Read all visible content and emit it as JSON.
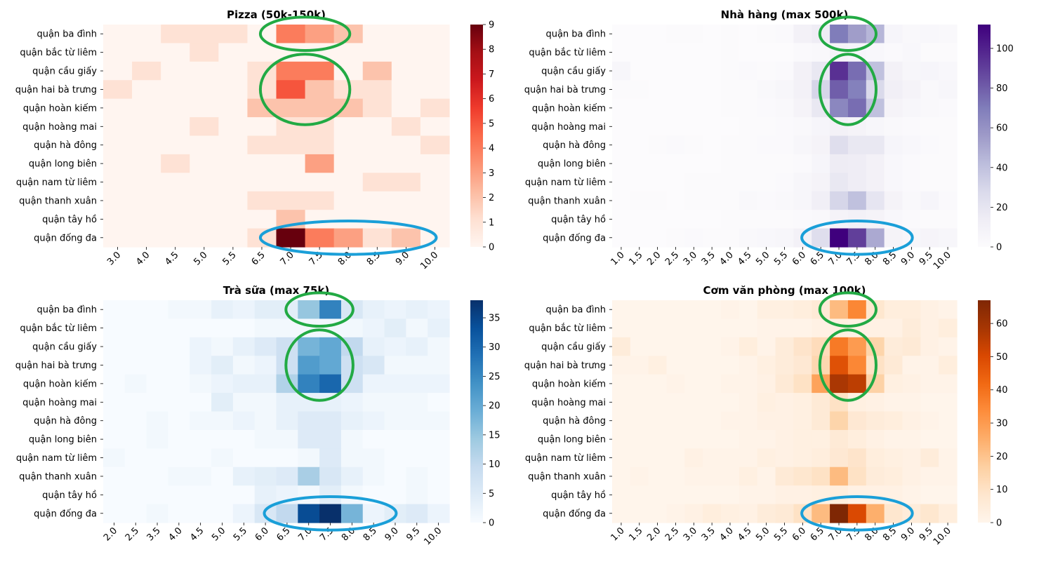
{
  "figure": {
    "panels": [
      {
        "key": "pizza",
        "title": "Pizza (50k-150k)"
      },
      {
        "key": "restaurant",
        "title": "Nhà hàng (max 500k)"
      },
      {
        "key": "milktea",
        "title": "Trà sữa (max 75k)"
      },
      {
        "key": "office_rice",
        "title": "Cơm văn phòng (max 100k)"
      }
    ]
  },
  "chart_data": [
    {
      "type": "heatmap",
      "title": "Pizza (50k-150k)",
      "colormap": "Reds",
      "colorbar": {
        "min": 0,
        "max": 9,
        "ticks": [
          0,
          1,
          2,
          3,
          4,
          5,
          6,
          7,
          8,
          9
        ]
      },
      "x": [
        "3.0",
        "4.0",
        "4.5",
        "5.0",
        "5.5",
        "6.5",
        "7.0",
        "7.5",
        "8.0",
        "8.5",
        "9.0",
        "10.0"
      ],
      "y": [
        "quận ba đình",
        "quận bắc từ liêm",
        "quận cầu giấy",
        "quận hai bà trưng",
        "quận hoàn kiếm",
        "quận hoàng mai",
        "quận hà đông",
        "quận long biên",
        "quận nam từ liêm",
        "quận thanh xuân",
        "quận tây hồ",
        "quận đống đa"
      ],
      "z": [
        [
          0,
          0,
          1,
          1,
          1,
          0,
          4,
          3,
          2,
          0,
          0,
          0
        ],
        [
          0,
          0,
          0,
          1,
          0,
          0,
          0,
          0,
          0,
          0,
          0,
          0
        ],
        [
          0,
          1,
          0,
          0,
          0,
          1,
          4,
          4,
          0,
          2,
          0,
          0
        ],
        [
          1,
          0,
          0,
          0,
          0,
          1,
          5,
          2,
          1,
          1,
          0,
          0
        ],
        [
          0,
          0,
          0,
          0,
          0,
          2,
          2,
          2,
          2,
          1,
          0,
          1
        ],
        [
          0,
          0,
          0,
          1,
          0,
          0,
          1,
          1,
          0,
          0,
          1,
          0
        ],
        [
          0,
          0,
          0,
          0,
          0,
          1,
          1,
          1,
          0,
          0,
          0,
          1
        ],
        [
          0,
          0,
          1,
          0,
          0,
          0,
          0,
          3,
          0,
          0,
          0,
          0
        ],
        [
          0,
          0,
          0,
          0,
          0,
          0,
          0,
          0,
          0,
          1,
          1,
          0
        ],
        [
          0,
          0,
          0,
          0,
          0,
          1,
          1,
          1,
          0,
          0,
          0,
          0
        ],
        [
          0,
          0,
          0,
          0,
          0,
          0,
          2,
          0,
          0,
          0,
          0,
          0
        ],
        [
          0,
          0,
          0,
          0,
          0,
          1,
          9,
          4,
          3,
          1,
          2,
          0
        ]
      ],
      "annotations": [
        {
          "shape": "ellipse",
          "color": "#22aa44",
          "around": {
            "rows": [
              0,
              0
            ],
            "cols": [
              6,
              7
            ]
          }
        },
        {
          "shape": "ellipse",
          "color": "#22aa44",
          "around": {
            "rows": [
              2,
              4
            ],
            "cols": [
              6,
              7
            ]
          }
        },
        {
          "shape": "ellipse",
          "color": "#1a9fd8",
          "around": {
            "rows": [
              11,
              11
            ],
            "cols": [
              6,
              10
            ]
          }
        }
      ]
    },
    {
      "type": "heatmap",
      "title": "Nhà hàng (max 500k)",
      "colormap": "Purples",
      "colorbar": {
        "min": 0,
        "max": 112,
        "ticks": [
          0,
          20,
          40,
          60,
          80,
          100
        ]
      },
      "x": [
        "1.0",
        "1.5",
        "2.0",
        "2.5",
        "3.0",
        "3.5",
        "4.0",
        "4.5",
        "5.0",
        "5.5",
        "6.0",
        "6.5",
        "7.0",
        "7.5",
        "8.0",
        "8.5",
        "9.0",
        "9.5",
        "10.0"
      ],
      "y": [
        "quận ba đình",
        "quận bắc từ liêm",
        "quận cầu giấy",
        "quận hai bà trưng",
        "quận hoàn kiếm",
        "quận hoàng mai",
        "quận hà đông",
        "quận long biên",
        "quận nam từ liêm",
        "quận thanh xuân",
        "quận tây hồ",
        "quận đống đa"
      ],
      "z": [
        [
          0,
          0,
          0,
          1,
          1,
          0,
          1,
          0,
          1,
          2,
          10,
          14,
          70,
          55,
          45,
          6,
          3,
          4,
          3
        ],
        [
          0,
          0,
          0,
          0,
          0,
          0,
          1,
          0,
          0,
          0,
          2,
          3,
          8,
          6,
          4,
          2,
          4,
          1,
          1
        ],
        [
          5,
          0,
          0,
          0,
          0,
          0,
          1,
          2,
          1,
          2,
          10,
          18,
          95,
          75,
          40,
          10,
          5,
          6,
          4
        ],
        [
          1,
          1,
          0,
          0,
          0,
          0,
          1,
          1,
          3,
          5,
          10,
          30,
          80,
          68,
          28,
          12,
          8,
          3,
          5
        ],
        [
          0,
          0,
          0,
          0,
          0,
          0,
          1,
          1,
          2,
          3,
          8,
          18,
          65,
          75,
          40,
          8,
          5,
          3,
          2
        ],
        [
          0,
          0,
          0,
          0,
          0,
          0,
          0,
          1,
          1,
          2,
          3,
          6,
          10,
          8,
          5,
          3,
          2,
          1,
          1
        ],
        [
          0,
          0,
          1,
          2,
          1,
          0,
          1,
          1,
          2,
          2,
          5,
          8,
          25,
          18,
          18,
          6,
          4,
          2,
          1
        ],
        [
          0,
          0,
          0,
          0,
          0,
          0,
          1,
          1,
          1,
          1,
          2,
          6,
          15,
          14,
          10,
          4,
          2,
          1,
          1
        ],
        [
          0,
          0,
          0,
          0,
          1,
          1,
          1,
          1,
          1,
          2,
          5,
          8,
          18,
          14,
          10,
          4,
          2,
          1,
          1
        ],
        [
          0,
          1,
          1,
          0,
          1,
          1,
          1,
          3,
          2,
          3,
          5,
          12,
          30,
          40,
          20,
          8,
          3,
          6,
          2
        ],
        [
          0,
          0,
          0,
          0,
          0,
          0,
          1,
          1,
          1,
          1,
          2,
          3,
          8,
          10,
          8,
          4,
          2,
          1,
          1
        ],
        [
          0,
          0,
          0,
          1,
          2,
          1,
          1,
          3,
          4,
          5,
          10,
          25,
          112,
          90,
          50,
          8,
          5,
          7,
          5
        ]
      ],
      "annotations": [
        {
          "shape": "ellipse",
          "color": "#22aa44",
          "around": {
            "rows": [
              0,
              0
            ],
            "cols": [
              12,
              13
            ]
          }
        },
        {
          "shape": "ellipse",
          "color": "#22aa44",
          "around": {
            "rows": [
              2,
              4
            ],
            "cols": [
              12,
              13
            ]
          }
        },
        {
          "shape": "ellipse",
          "color": "#1a9fd8",
          "around": {
            "rows": [
              11,
              11
            ],
            "cols": [
              11,
              15
            ]
          }
        }
      ]
    },
    {
      "type": "heatmap",
      "title": "Trà sữa (max 75k)",
      "colormap": "Blues",
      "colorbar": {
        "min": 0,
        "max": 38,
        "ticks": [
          0,
          5,
          10,
          15,
          20,
          25,
          30,
          35
        ]
      },
      "x": [
        "2.0",
        "2.5",
        "3.5",
        "4.0",
        "4.5",
        "5.0",
        "5.5",
        "6.0",
        "6.5",
        "7.0",
        "7.5",
        "8.0",
        "8.5",
        "9.0",
        "9.5",
        "10.0"
      ],
      "y": [
        "quận ba đình",
        "quận bắc từ liêm",
        "quận cầu giấy",
        "quận hai bà trưng",
        "quận hoàn kiếm",
        "quận hoàng mai",
        "quận hà đông",
        "quận long biên",
        "quận nam từ liêm",
        "quận thanh xuân",
        "quận tây hồ",
        "quận đống đa"
      ],
      "z": [
        [
          0,
          0,
          0,
          1,
          1,
          3,
          2,
          4,
          4,
          15,
          26,
          6,
          3,
          2,
          3,
          2
        ],
        [
          0,
          0,
          0,
          0,
          0,
          0,
          0,
          1,
          1,
          1,
          1,
          1,
          2,
          4,
          1,
          3
        ],
        [
          0,
          0,
          0,
          0,
          2,
          1,
          3,
          5,
          8,
          18,
          20,
          10,
          3,
          2,
          3,
          1
        ],
        [
          0,
          0,
          0,
          0,
          2,
          4,
          1,
          2,
          8,
          22,
          20,
          8,
          6,
          1,
          1,
          1
        ],
        [
          0,
          1,
          0,
          0,
          1,
          2,
          3,
          3,
          12,
          26,
          30,
          8,
          2,
          2,
          2,
          2
        ],
        [
          0,
          0,
          0,
          0,
          0,
          4,
          1,
          1,
          3,
          3,
          3,
          2,
          1,
          1,
          1,
          0
        ],
        [
          0,
          0,
          1,
          0,
          1,
          1,
          2,
          1,
          3,
          5,
          5,
          3,
          2,
          1,
          1,
          1
        ],
        [
          0,
          0,
          1,
          0,
          0,
          0,
          0,
          1,
          1,
          5,
          5,
          1,
          0,
          0,
          0,
          0
        ],
        [
          1,
          0,
          0,
          0,
          0,
          1,
          0,
          0,
          0,
          1,
          5,
          1,
          1,
          0,
          0,
          0
        ],
        [
          0,
          0,
          0,
          1,
          1,
          0,
          3,
          4,
          5,
          13,
          6,
          3,
          1,
          0,
          1,
          0
        ],
        [
          0,
          0,
          0,
          0,
          0,
          0,
          0,
          3,
          2,
          1,
          4,
          1,
          0,
          0,
          1,
          0
        ],
        [
          0,
          0,
          1,
          0,
          0,
          0,
          2,
          6,
          10,
          34,
          38,
          18,
          2,
          4,
          5,
          2
        ]
      ],
      "annotations": [
        {
          "shape": "ellipse",
          "color": "#22aa44",
          "around": {
            "rows": [
              0,
              0
            ],
            "cols": [
              9,
              10
            ]
          }
        },
        {
          "shape": "ellipse",
          "color": "#22aa44",
          "around": {
            "rows": [
              2,
              4
            ],
            "cols": [
              9,
              10
            ]
          }
        },
        {
          "shape": "ellipse",
          "color": "#1a9fd8",
          "around": {
            "rows": [
              11,
              11
            ],
            "cols": [
              8,
              12
            ]
          }
        }
      ]
    },
    {
      "type": "heatmap",
      "title": "Cơm văn phòng (max 100k)",
      "colormap": "Oranges",
      "colorbar": {
        "min": 0,
        "max": 67,
        "ticks": [
          0,
          10,
          20,
          30,
          40,
          50,
          60
        ]
      },
      "x": [
        "1.0",
        "1.5",
        "2.0",
        "2.5",
        "3.0",
        "3.5",
        "4.0",
        "4.5",
        "5.0",
        "5.5",
        "6.0",
        "6.5",
        "7.0",
        "7.5",
        "8.0",
        "8.5",
        "9.0",
        "9.5",
        "10.0"
      ],
      "y": [
        "quận ba đình",
        "quận bắc từ liêm",
        "quận cầu giấy",
        "quận hai bà trưng",
        "quận hoàn kiếm",
        "quận hoàng mai",
        "quận hà đông",
        "quận long biên",
        "quận nam từ liêm",
        "quận thanh xuân",
        "quận tây hồ",
        "quận đống đa"
      ],
      "z": [
        [
          0,
          0,
          0,
          0,
          0,
          0,
          1,
          0,
          3,
          3,
          4,
          6,
          22,
          35,
          8,
          4,
          4,
          2,
          1
        ],
        [
          0,
          0,
          0,
          0,
          0,
          0,
          0,
          0,
          1,
          1,
          1,
          2,
          3,
          2,
          2,
          2,
          5,
          2,
          4
        ],
        [
          5,
          0,
          0,
          0,
          0,
          0,
          1,
          4,
          1,
          5,
          9,
          12,
          38,
          30,
          15,
          5,
          6,
          2,
          1
        ],
        [
          1,
          1,
          3,
          0,
          0,
          0,
          0,
          1,
          3,
          5,
          7,
          14,
          48,
          35,
          10,
          6,
          1,
          1,
          4
        ],
        [
          0,
          0,
          0,
          1,
          0,
          0,
          1,
          1,
          2,
          6,
          10,
          28,
          58,
          55,
          16,
          3,
          2,
          1,
          1
        ],
        [
          0,
          0,
          0,
          0,
          0,
          0,
          0,
          1,
          3,
          2,
          3,
          6,
          10,
          3,
          2,
          1,
          1,
          0,
          0
        ],
        [
          0,
          0,
          0,
          0,
          0,
          0,
          1,
          1,
          2,
          2,
          3,
          6,
          15,
          7,
          5,
          4,
          2,
          1,
          0
        ],
        [
          0,
          0,
          0,
          0,
          0,
          0,
          0,
          1,
          1,
          2,
          3,
          3,
          6,
          4,
          2,
          1,
          1,
          0,
          0
        ],
        [
          0,
          0,
          0,
          0,
          2,
          1,
          1,
          1,
          3,
          2,
          3,
          4,
          7,
          9,
          4,
          3,
          2,
          5,
          1
        ],
        [
          0,
          1,
          0,
          0,
          1,
          1,
          1,
          3,
          1,
          6,
          8,
          10,
          22,
          10,
          5,
          4,
          2,
          1,
          1
        ],
        [
          0,
          0,
          0,
          0,
          0,
          0,
          0,
          1,
          1,
          2,
          2,
          3,
          4,
          2,
          2,
          2,
          1,
          0,
          0
        ],
        [
          0,
          0,
          0,
          1,
          2,
          4,
          3,
          2,
          5,
          6,
          10,
          22,
          67,
          50,
          25,
          8,
          5,
          8,
          4
        ]
      ],
      "annotations": [
        {
          "shape": "ellipse",
          "color": "#22aa44",
          "around": {
            "rows": [
              0,
              0
            ],
            "cols": [
              12,
              13
            ]
          }
        },
        {
          "shape": "ellipse",
          "color": "#22aa44",
          "around": {
            "rows": [
              2,
              4
            ],
            "cols": [
              12,
              13
            ]
          }
        },
        {
          "shape": "ellipse",
          "color": "#1a9fd8",
          "around": {
            "rows": [
              11,
              11
            ],
            "cols": [
              11,
              15
            ]
          }
        }
      ]
    }
  ]
}
